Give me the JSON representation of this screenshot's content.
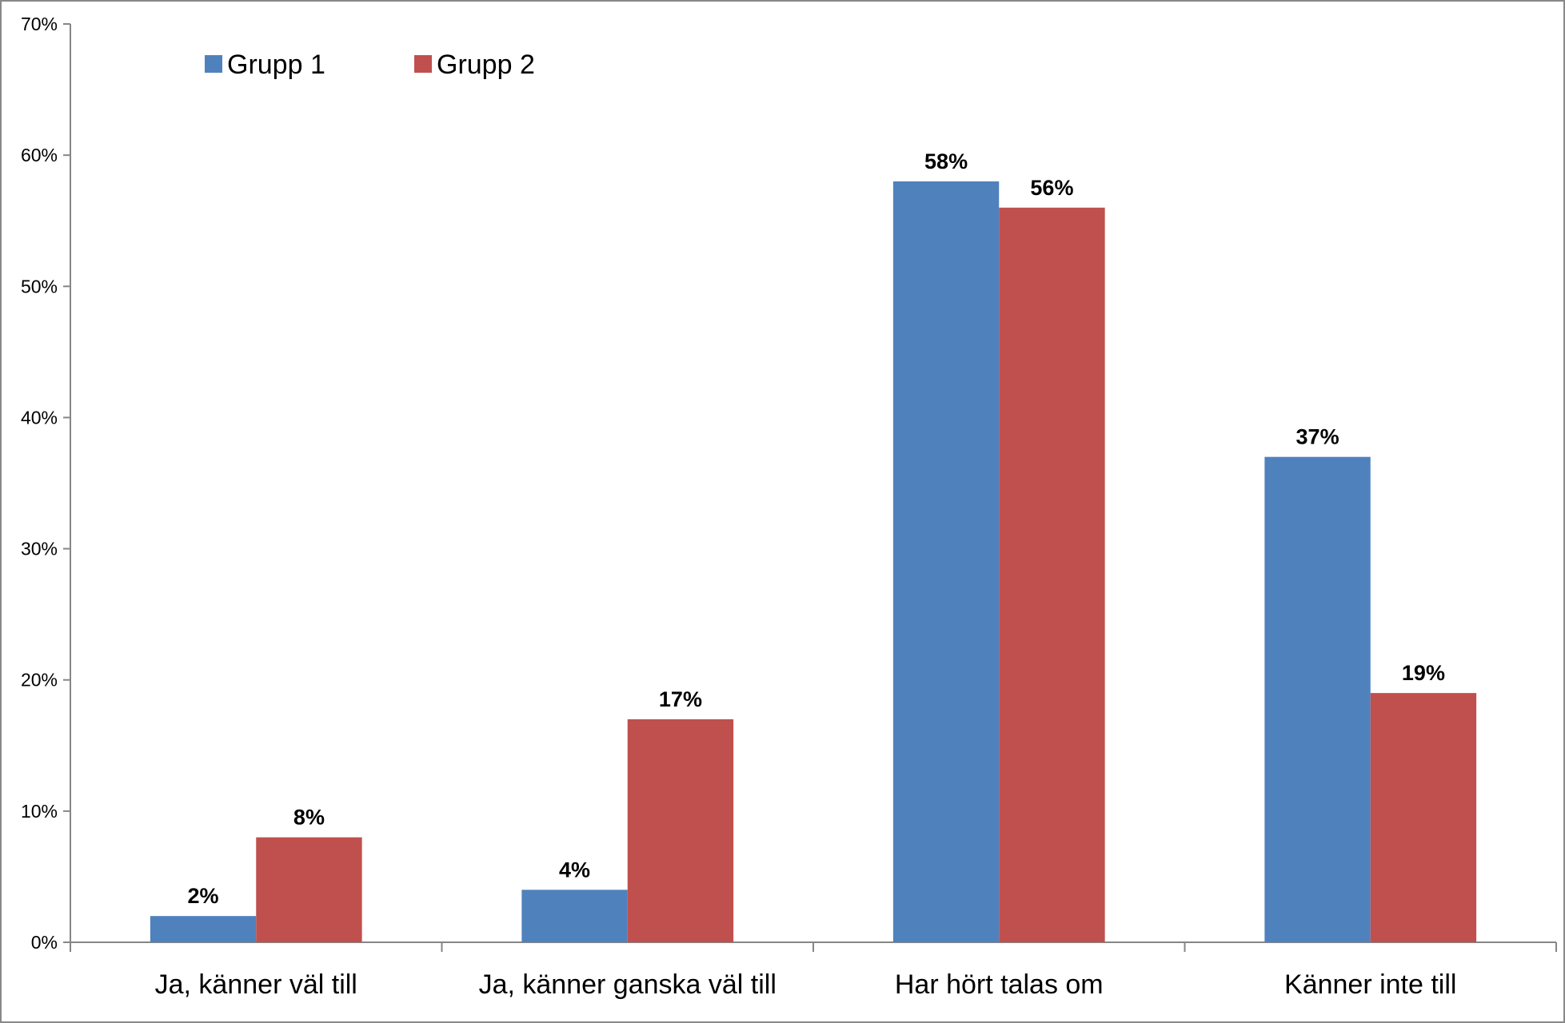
{
  "chart_data": {
    "type": "bar",
    "title": "",
    "xlabel": "",
    "ylabel": "",
    "categories": [
      "Ja, känner väl till",
      "Ja, känner ganska väl till",
      "Har hört talas om",
      "Känner inte till"
    ],
    "series": [
      {
        "name": "Grupp 1",
        "color": "#4F81BD",
        "values": [
          2,
          4,
          58,
          37
        ],
        "labels": [
          "2%",
          "4%",
          "58%",
          "37%"
        ]
      },
      {
        "name": "Grupp 2",
        "color": "#C0504D",
        "values": [
          8,
          17,
          56,
          19
        ],
        "labels": [
          "8%",
          "17%",
          "56%",
          "19%"
        ]
      }
    ],
    "ylim": [
      0,
      70
    ],
    "yticks": [
      0,
      10,
      20,
      30,
      40,
      50,
      60,
      70
    ],
    "ytick_labels": [
      "0%",
      "10%",
      "20%",
      "30%",
      "40%",
      "50%",
      "60%",
      "70%"
    ],
    "grid": false,
    "legend": {
      "position": "top-left"
    }
  }
}
